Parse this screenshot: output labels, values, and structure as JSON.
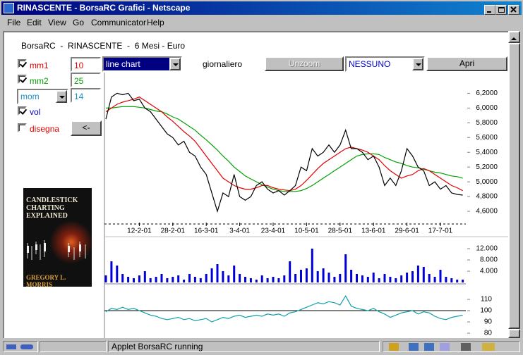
{
  "window": {
    "title": "RINASCENTE - BorsaRC Grafici - Netscape"
  },
  "menu": [
    "File",
    "Edit",
    "View",
    "Go",
    "Communicator",
    "Help"
  ],
  "applet": {
    "header": "BorsaRC  -  RINASCENTE  -  6 Mesi - Euro",
    "options": [
      {
        "label": "mm1",
        "checked": true,
        "value": 10,
        "color": "#e00000"
      },
      {
        "label": "mm2",
        "checked": true,
        "value": 25,
        "color": "#00a000"
      },
      {
        "label": "mom",
        "value": 14,
        "color": "#1a90c8"
      },
      {
        "label": "vol",
        "checked": true,
        "color": "#0000d0"
      },
      {
        "label": "disegna",
        "checked": false,
        "color": "#e00000",
        "button": "<-"
      }
    ],
    "toolbar": {
      "chart_type": "line chart",
      "period": "giornaliero",
      "unzoom": "Unzoom",
      "compare": "NESSUNO",
      "open": "Apri"
    },
    "book": {
      "title": "CANDLESTICK CHARTING EXPLAINED",
      "author": "GREGORY L. MORRIS"
    }
  },
  "status": "Applet BorsaRC running",
  "chart_data": [
    {
      "type": "line",
      "categories": [
        null,
        null,
        null,
        null,
        null,
        null,
        "12-2-01",
        null,
        null,
        null,
        null,
        null,
        "28-2-01",
        null,
        null,
        null,
        null,
        null,
        "16-3-01",
        null,
        null,
        null,
        null,
        null,
        "3-4-01",
        null,
        null,
        null,
        null,
        null,
        "23-4-01",
        null,
        null,
        null,
        null,
        null,
        "10-5-01",
        null,
        null,
        null,
        null,
        null,
        "28-5-01",
        null,
        null,
        null,
        null,
        null,
        "13-6-01",
        null,
        null,
        null,
        null,
        null,
        "29-6-01",
        null,
        null,
        null,
        null,
        null,
        "17-7-01",
        null,
        null,
        null,
        null
      ],
      "series": [
        {
          "color": "#000000",
          "values": [
            5.85,
            6.15,
            6.2,
            6.18,
            6.2,
            6.1,
            6.12,
            6.0,
            5.95,
            5.85,
            5.75,
            5.65,
            5.6,
            5.5,
            5.55,
            5.4,
            5.35,
            5.2,
            5.1,
            4.85,
            4.6,
            4.85,
            4.8,
            5.1,
            4.8,
            4.75,
            4.8,
            4.95,
            5.0,
            4.9,
            4.85,
            4.88,
            4.82,
            4.88,
            4.95,
            5.2,
            5.15,
            5.45,
            5.35,
            5.4,
            5.5,
            5.4,
            5.5,
            5.7,
            5.45,
            5.45,
            5.4,
            5.3,
            5.35,
            5.2,
            4.95,
            5.05,
            4.95,
            5.15,
            5.45,
            5.35,
            5.2,
            5.15,
            4.95,
            5.0,
            4.9,
            4.95,
            4.85,
            4.83,
            4.82
          ]
        },
        {
          "color": "#e00000",
          "values": [
            5.95,
            6.0,
            6.05,
            6.08,
            6.1,
            6.12,
            6.15,
            6.1,
            6.05,
            6.0,
            5.95,
            5.88,
            5.82,
            5.75,
            5.68,
            5.62,
            5.55,
            5.45,
            5.35,
            5.25,
            5.15,
            5.05,
            5.0,
            4.95,
            4.92,
            4.9,
            4.9,
            4.92,
            4.95,
            4.95,
            4.92,
            4.9,
            4.89,
            4.88,
            4.9,
            4.95,
            5.02,
            5.1,
            5.18,
            5.25,
            5.3,
            5.35,
            5.4,
            5.45,
            5.47,
            5.45,
            5.43,
            5.4,
            5.35,
            5.3,
            5.22,
            5.15,
            5.1,
            5.05,
            5.08,
            5.1,
            5.15,
            5.18,
            5.15,
            5.1,
            5.05,
            5.0,
            4.95,
            4.92,
            4.88
          ]
        },
        {
          "color": "#00a000",
          "values": [
            6.0,
            6.0,
            6.01,
            6.02,
            6.02,
            6.02,
            6.01,
            6.0,
            5.98,
            5.96,
            5.95,
            5.92,
            5.88,
            5.85,
            5.8,
            5.75,
            5.7,
            5.63,
            5.57,
            5.5,
            5.43,
            5.35,
            5.28,
            5.2,
            5.14,
            5.08,
            5.04,
            5.0,
            4.96,
            4.93,
            4.9,
            4.88,
            4.87,
            4.87,
            4.87,
            4.88,
            4.91,
            4.95,
            5.0,
            5.05,
            5.1,
            5.15,
            5.2,
            5.25,
            5.3,
            5.35,
            5.37,
            5.38,
            5.38,
            5.37,
            5.33,
            5.3,
            5.27,
            5.25,
            5.22,
            5.2,
            5.19,
            5.17,
            5.15,
            5.13,
            5.12,
            5.1,
            5.08,
            5.07,
            5.05
          ]
        }
      ],
      "ylim": [
        4.4,
        6.5
      ],
      "yticks": [
        {
          "value": 6.2,
          "label": "6,2000"
        },
        {
          "value": 6.0,
          "label": "6,0000"
        },
        {
          "value": 5.8,
          "label": "5,8000"
        },
        {
          "value": 5.6,
          "label": "5,6000"
        },
        {
          "value": 5.4,
          "label": "5,4000"
        },
        {
          "value": 5.2,
          "label": "5,2000"
        },
        {
          "value": 5.0,
          "label": "5,0000"
        },
        {
          "value": 4.8,
          "label": "4,8000"
        },
        {
          "value": 4.6,
          "label": "4,6000"
        }
      ],
      "grid": false
    },
    {
      "type": "bar",
      "color": "#0000d8",
      "values": [
        2500,
        7500,
        6000,
        3000,
        2000,
        1500,
        2500,
        4000,
        1500,
        2000,
        3000,
        1500,
        2000,
        2500,
        1000,
        3000,
        2000,
        1500,
        3000,
        5000,
        6500,
        4000,
        2500,
        6000,
        3000,
        2000,
        1500,
        1000,
        2500,
        1500,
        2000,
        1500,
        2500,
        7500,
        3000,
        4500,
        5000,
        12000,
        4000,
        5000,
        3500,
        2000,
        3000,
        10000,
        4500,
        3000,
        2500,
        2000,
        3500,
        1500,
        3000,
        2000,
        1500,
        2500,
        3500,
        4000,
        6000,
        5500,
        3000,
        2000,
        4500,
        2000,
        1500,
        1000,
        1000
      ],
      "ylim": [
        0,
        14000
      ],
      "yticks": [
        {
          "value": 12000,
          "label": "12.000"
        },
        {
          "value": 8000,
          "label": "8.000"
        },
        {
          "value": 4000,
          "label": "4.000"
        }
      ]
    },
    {
      "type": "line",
      "color": "#10a0a8",
      "values": [
        99,
        102,
        101,
        103,
        101,
        102,
        100,
        98,
        96,
        95,
        93,
        92,
        93,
        94,
        92,
        93,
        91,
        92,
        93,
        90,
        92,
        94,
        93,
        95,
        96,
        94,
        95,
        96,
        95,
        97,
        96,
        97,
        95,
        98,
        99,
        101,
        103,
        105,
        107,
        106,
        108,
        107,
        105,
        113,
        104,
        102,
        101,
        100,
        102,
        99,
        97,
        94,
        96,
        98,
        99,
        100,
        97,
        99,
        98,
        95,
        93,
        92,
        94,
        95,
        96
      ],
      "ylim": [
        78,
        116
      ],
      "yticks": [
        110,
        100,
        90,
        80
      ],
      "reference_line": 100
    }
  ]
}
